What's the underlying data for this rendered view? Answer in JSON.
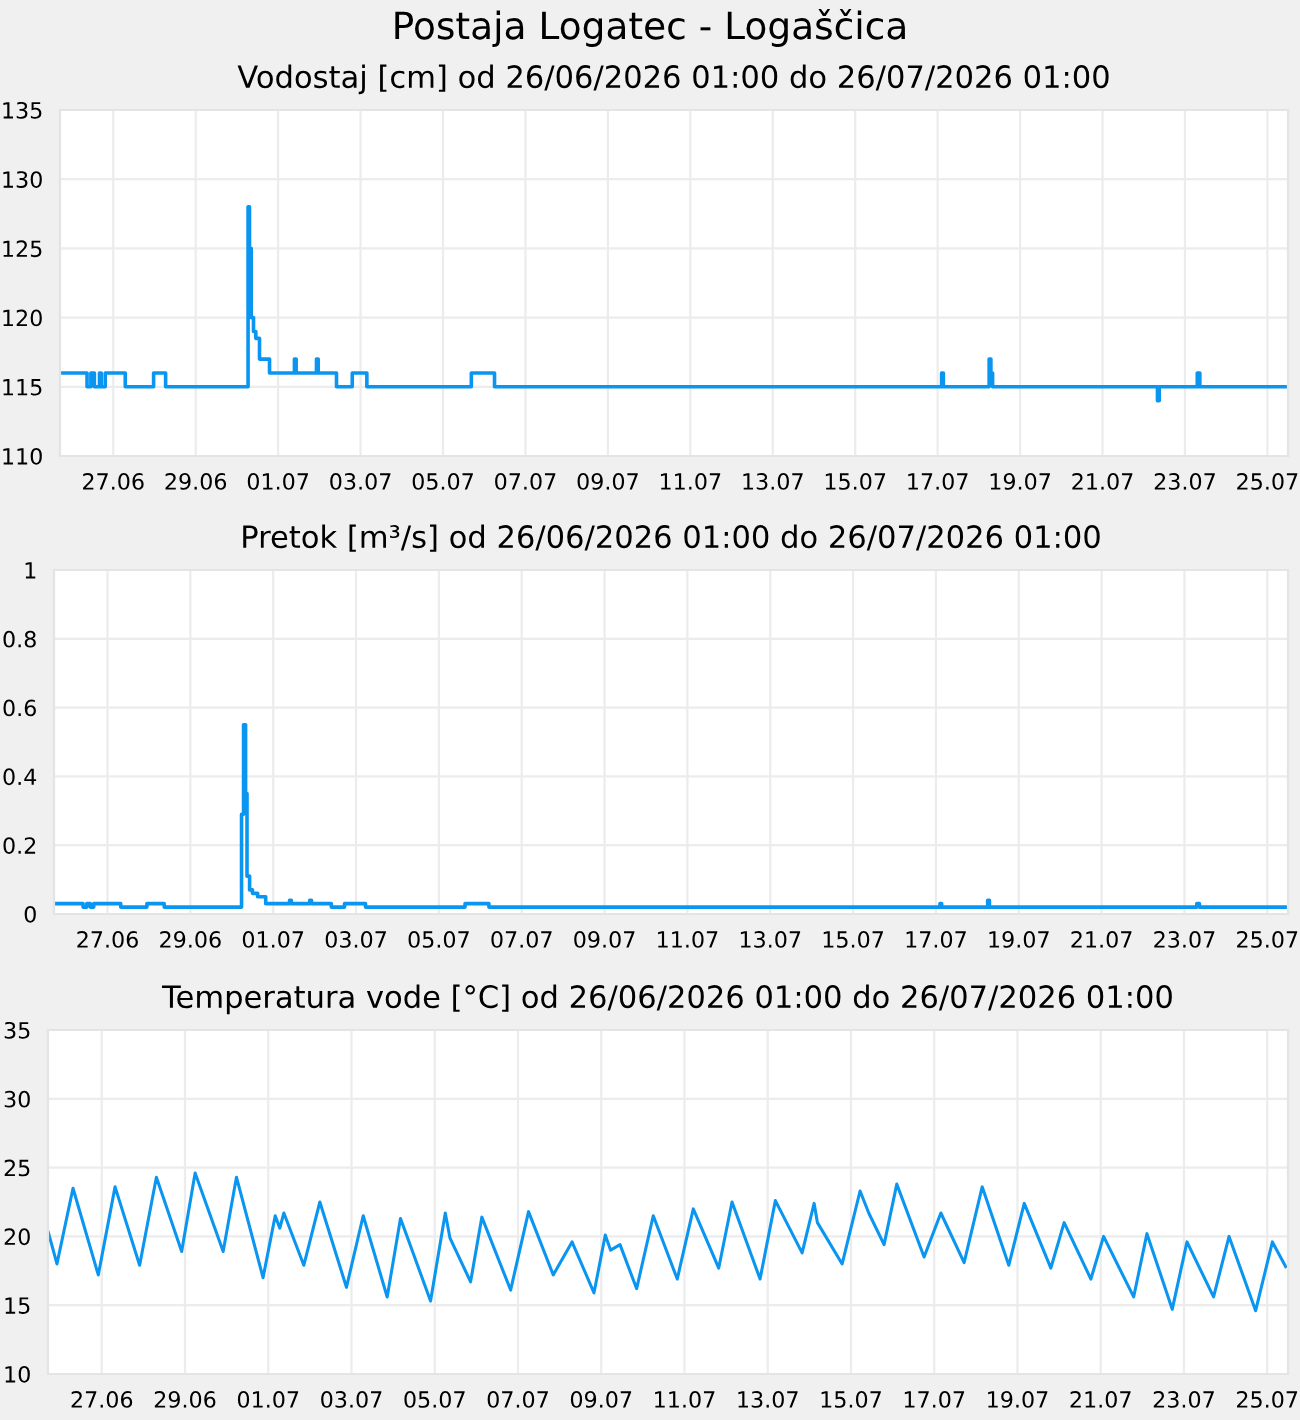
{
  "chart_data": [
    {
      "type": "step",
      "title": "Postaja Logatec - Logaščica",
      "subtitle": "Vodostaj [cm] od 26/06/2026 01:00 do 26/07/2026 01:00",
      "color": "#0a96f0",
      "grid": true,
      "x": [
        "2026-06-25T17:00",
        "2026-06-26T08:45",
        "2026-06-26T11:00",
        "2026-06-26T13:00",
        "2026-06-26T16:00",
        "2026-06-26T17:00",
        "2026-06-26T19:20",
        "2026-06-27T07:00",
        "2026-06-27T23:30",
        "2026-06-28T06:30",
        "2026-06-30T06:30",
        "2026-06-30T07:20",
        "2026-06-30T08:20",
        "2026-06-30T09:40",
        "2026-06-30T11:00",
        "2026-06-30T13:10",
        "2026-06-30T19:00",
        "2026-07-01T09:30",
        "2026-07-01T10:30",
        "2026-07-01T22:20",
        "2026-07-01T23:20",
        "2026-07-02T10:00",
        "2026-07-02T19:10",
        "2026-07-03T03:40",
        "2026-07-05T16:30",
        "2026-07-06T06:00",
        "2026-07-17T02:20",
        "2026-07-17T03:20",
        "2026-07-18T06:00",
        "2026-07-18T07:00",
        "2026-07-18T08:00",
        "2026-07-22T08:00",
        "2026-07-22T09:00",
        "2026-07-23T07:10",
        "2026-07-23T08:40",
        "2026-07-25T12:00"
      ],
      "values": [
        116,
        115,
        116,
        115,
        116,
        115,
        116,
        115,
        116,
        115,
        128,
        125,
        120,
        119,
        118.5,
        117,
        116,
        117,
        116,
        117,
        116,
        115,
        116,
        115,
        116,
        115,
        116,
        115,
        117,
        116,
        115,
        114,
        115,
        116,
        115,
        115
      ],
      "xlim": [
        "2026-06-25T17:00",
        "2026-07-25T12:00"
      ],
      "xticks": [
        {
          "value": "2026-06-27",
          "label": "27.06"
        },
        {
          "value": "2026-06-29",
          "label": "29.06"
        },
        {
          "value": "2026-07-01",
          "label": "01.07"
        },
        {
          "value": "2026-07-03",
          "label": "03.07"
        },
        {
          "value": "2026-07-05",
          "label": "05.07"
        },
        {
          "value": "2026-07-07",
          "label": "07.07"
        },
        {
          "value": "2026-07-09",
          "label": "09.07"
        },
        {
          "value": "2026-07-11",
          "label": "11.07"
        },
        {
          "value": "2026-07-13",
          "label": "13.07"
        },
        {
          "value": "2026-07-15",
          "label": "15.07"
        },
        {
          "value": "2026-07-17",
          "label": "17.07"
        },
        {
          "value": "2026-07-19",
          "label": "19.07"
        },
        {
          "value": "2026-07-21",
          "label": "21.07"
        },
        {
          "value": "2026-07-23",
          "label": "23.07"
        },
        {
          "value": "2026-07-25",
          "label": "25.07"
        }
      ],
      "ylim": [
        110,
        135
      ],
      "yticks": [
        110,
        115,
        120,
        125,
        130,
        135
      ]
    },
    {
      "type": "step",
      "title": "Pretok [m³/s] od 26/06/2026 01:00 do 26/07/2026 01:00",
      "color": "#0a96f0",
      "grid": true,
      "x": [
        "2026-06-25T17:00",
        "2026-06-26T09:50",
        "2026-06-26T12:00",
        "2026-06-26T14:00",
        "2026-06-26T16:00",
        "2026-06-27T07:40",
        "2026-06-27T22:50",
        "2026-06-28T08:50",
        "2026-06-30T05:40",
        "2026-06-30T06:50",
        "2026-06-30T08:00",
        "2026-06-30T08:50",
        "2026-06-30T10:20",
        "2026-06-30T12:00",
        "2026-06-30T15:00",
        "2026-06-30T19:40",
        "2026-07-01T09:30",
        "2026-07-01T10:30",
        "2026-07-01T21:10",
        "2026-07-01T22:10",
        "2026-07-02T09:40",
        "2026-07-02T17:20",
        "2026-07-03T05:30",
        "2026-07-05T15:10",
        "2026-07-06T05:00",
        "2026-07-17T02:20",
        "2026-07-17T03:20",
        "2026-07-18T06:00",
        "2026-07-18T07:00",
        "2026-07-23T07:10",
        "2026-07-23T08:40",
        "2026-07-25T12:00"
      ],
      "values": [
        0.03,
        0.02,
        0.03,
        0.02,
        0.03,
        0.02,
        0.03,
        0.02,
        0.29,
        0.55,
        0.35,
        0.11,
        0.07,
        0.06,
        0.05,
        0.03,
        0.04,
        0.03,
        0.04,
        0.03,
        0.02,
        0.03,
        0.02,
        0.03,
        0.02,
        0.03,
        0.02,
        0.04,
        0.02,
        0.03,
        0.02,
        0.02
      ],
      "xlim": [
        "2026-06-25T17:00",
        "2026-07-25T12:00"
      ],
      "xticks": [
        {
          "value": "2026-06-27",
          "label": "27.06"
        },
        {
          "value": "2026-06-29",
          "label": "29.06"
        },
        {
          "value": "2026-07-01",
          "label": "01.07"
        },
        {
          "value": "2026-07-03",
          "label": "03.07"
        },
        {
          "value": "2026-07-05",
          "label": "05.07"
        },
        {
          "value": "2026-07-07",
          "label": "07.07"
        },
        {
          "value": "2026-07-09",
          "label": "09.07"
        },
        {
          "value": "2026-07-11",
          "label": "11.07"
        },
        {
          "value": "2026-07-13",
          "label": "13.07"
        },
        {
          "value": "2026-07-15",
          "label": "15.07"
        },
        {
          "value": "2026-07-17",
          "label": "17.07"
        },
        {
          "value": "2026-07-19",
          "label": "19.07"
        },
        {
          "value": "2026-07-21",
          "label": "21.07"
        },
        {
          "value": "2026-07-23",
          "label": "23.07"
        },
        {
          "value": "2026-07-25",
          "label": "25.07"
        }
      ],
      "ylim": [
        0,
        1
      ],
      "yticks": [
        0,
        0.2,
        0.4,
        0.6,
        0.8,
        1
      ]
    },
    {
      "type": "line",
      "title": "Temperatura vode [°C] od 26/06/2026 01:00 do 26/07/2026 01:00",
      "color": "#0a96f0",
      "grid": true,
      "x": [
        "2026-06-25T17:10",
        "2026-06-25T22:10",
        "2026-06-26T07:25",
        "2026-06-26T22:00",
        "2026-06-27T07:40",
        "2026-06-27T21:50",
        "2026-06-28T07:30",
        "2026-06-28T22:05",
        "2026-06-29T05:50",
        "2026-06-29T22:00",
        "2026-06-30T05:40",
        "2026-06-30T21:00",
        "2026-07-01T04:00",
        "2026-07-01T06:40",
        "2026-07-01T09:00",
        "2026-07-01T20:30",
        "2026-07-02T05:45",
        "2026-07-02T21:05",
        "2026-07-03T06:45",
        "2026-07-03T20:35",
        "2026-07-04T04:15",
        "2026-07-04T07:45",
        "2026-07-04T21:35",
        "2026-07-05T06:05",
        "2026-07-05T08:45",
        "2026-07-05T20:40",
        "2026-07-06T03:10",
        "2026-07-06T19:45",
        "2026-07-07T06:05",
        "2026-07-07T20:20",
        "2026-07-08T07:10",
        "2026-07-08T19:50",
        "2026-07-09T02:20",
        "2026-07-09T05:25",
        "2026-07-09T10:50",
        "2026-07-09T20:25",
        "2026-07-10T06:00",
        "2026-07-10T19:50",
        "2026-07-11T05:05",
        "2026-07-11T19:45",
        "2026-07-12T03:25",
        "2026-07-12T19:35",
        "2026-07-13T04:25",
        "2026-07-13T19:50",
        "2026-07-14T02:45",
        "2026-07-14T04:40",
        "2026-07-14T18:55",
        "2026-07-15T05:15",
        "2026-07-15T10:15",
        "2026-07-15T19:05",
        "2026-07-16T02:25",
        "2026-07-16T18:10",
        "2026-07-17T03:50",
        "2026-07-17T17:15",
        "2026-07-18T03:40",
        "2026-07-18T19:00",
        "2026-07-19T03:55",
        "2026-07-19T19:15",
        "2026-07-20T02:55",
        "2026-07-20T18:20",
        "2026-07-21T01:40",
        "2026-07-21T19:00",
        "2026-07-22T02:40",
        "2026-07-22T17:15",
        "2026-07-23T01:45",
        "2026-07-23T17:05",
        "2026-07-24T02:00",
        "2026-07-24T17:20",
        "2026-07-25T03:00",
        "2026-07-25T10:40"
      ],
      "values": [
        20.3,
        18.0,
        23.5,
        17.2,
        23.6,
        17.9,
        24.3,
        18.9,
        24.6,
        18.9,
        24.3,
        17.0,
        21.5,
        20.6,
        21.7,
        17.9,
        22.5,
        16.3,
        21.5,
        15.6,
        21.3,
        20.1,
        15.3,
        21.7,
        19.9,
        16.7,
        21.4,
        16.1,
        21.8,
        17.2,
        19.6,
        15.9,
        20.1,
        19.0,
        19.4,
        16.2,
        21.5,
        16.9,
        22.0,
        17.7,
        22.5,
        16.9,
        22.6,
        18.8,
        22.4,
        21.0,
        18.0,
        23.3,
        21.7,
        19.4,
        23.8,
        18.5,
        21.7,
        18.1,
        23.6,
        17.9,
        22.4,
        17.7,
        21.0,
        16.9,
        20.0,
        15.6,
        20.2,
        14.7,
        19.6,
        15.6,
        20.0,
        14.6,
        19.6,
        17.8
      ],
      "xlim": [
        "2026-06-25T17:00",
        "2026-07-25T12:00"
      ],
      "xticks": [
        {
          "value": "2026-06-27",
          "label": "27.06"
        },
        {
          "value": "2026-06-29",
          "label": "29.06"
        },
        {
          "value": "2026-07-01",
          "label": "01.07"
        },
        {
          "value": "2026-07-03",
          "label": "03.07"
        },
        {
          "value": "2026-07-05",
          "label": "05.07"
        },
        {
          "value": "2026-07-07",
          "label": "07.07"
        },
        {
          "value": "2026-07-09",
          "label": "09.07"
        },
        {
          "value": "2026-07-11",
          "label": "11.07"
        },
        {
          "value": "2026-07-13",
          "label": "13.07"
        },
        {
          "value": "2026-07-15",
          "label": "15.07"
        },
        {
          "value": "2026-07-17",
          "label": "17.07"
        },
        {
          "value": "2026-07-19",
          "label": "19.07"
        },
        {
          "value": "2026-07-21",
          "label": "21.07"
        },
        {
          "value": "2026-07-23",
          "label": "23.07"
        },
        {
          "value": "2026-07-25",
          "label": "25.07"
        }
      ],
      "ylim": [
        10,
        35
      ],
      "yticks": [
        10,
        15,
        20,
        25,
        30,
        35
      ]
    }
  ]
}
